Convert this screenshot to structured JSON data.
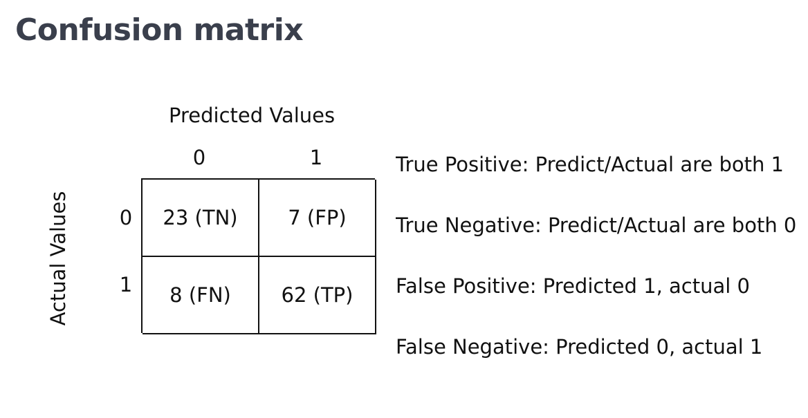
{
  "slide": {
    "title": "Confusion matrix"
  },
  "matrix": {
    "predicted_label": "Predicted Values",
    "actual_label": "Actual Values",
    "columns": [
      "0",
      "1"
    ],
    "rows": [
      "0",
      "1"
    ],
    "cells": [
      [
        "23 (TN)",
        "7 (FP)"
      ],
      [
        "8 (FN)",
        "62 (TP)"
      ]
    ]
  },
  "definitions": [
    "True Positive: Predict/Actual are both 1",
    "True Negative: Predict/Actual are both 0",
    "False Positive: Predicted 1, actual 0",
    "False Negative: Predicted 0, actual 1"
  ]
}
